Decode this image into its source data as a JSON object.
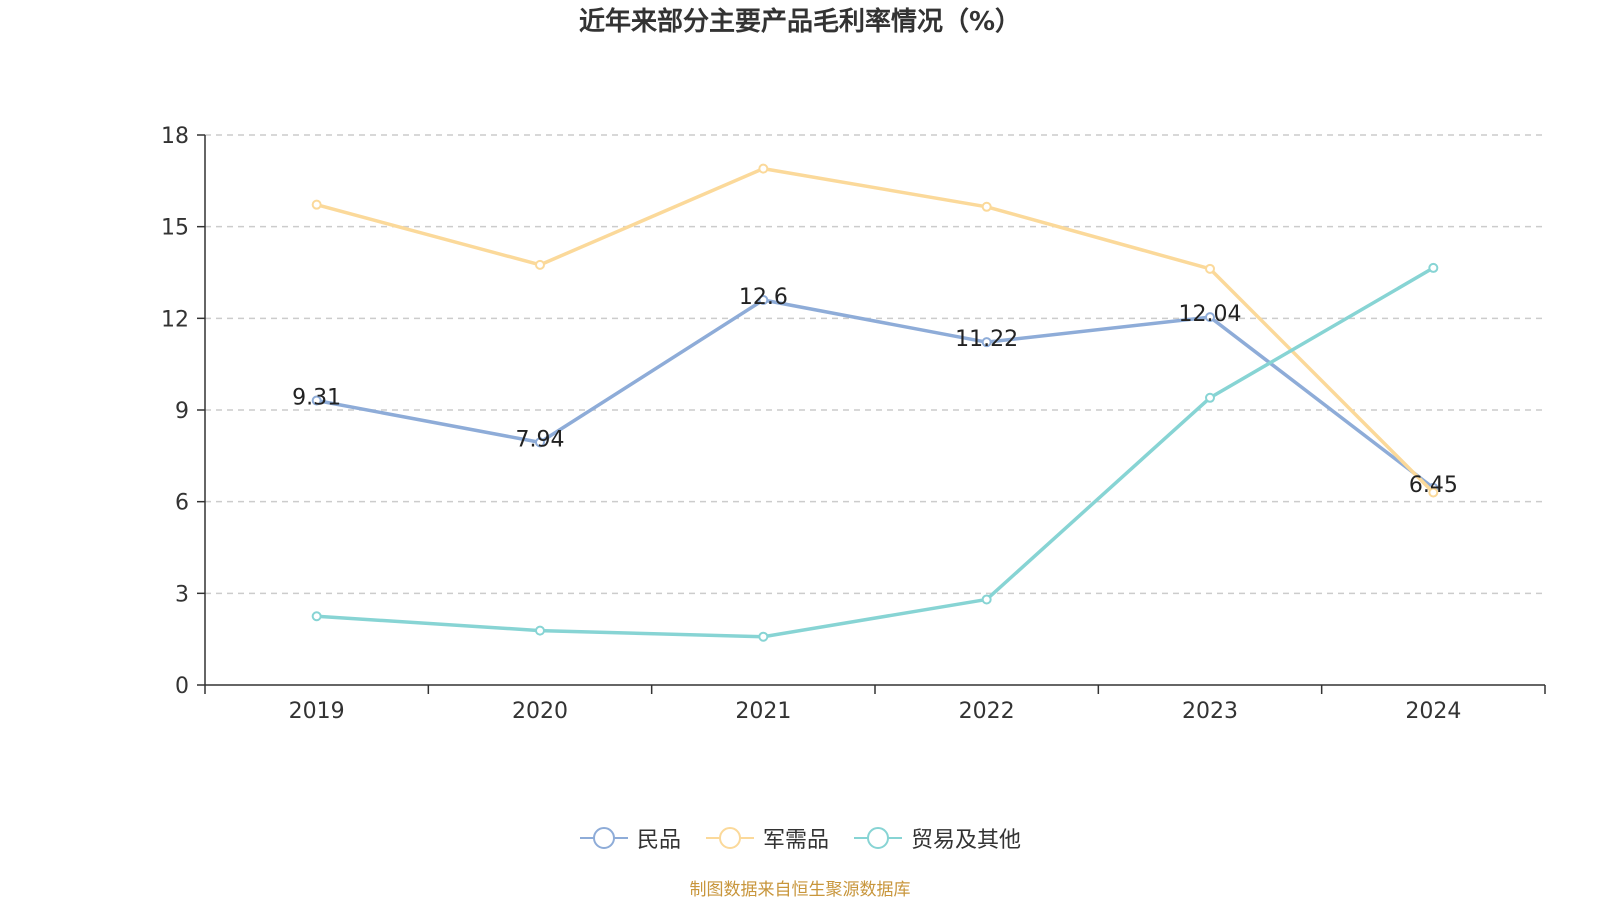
{
  "chart_data": {
    "type": "line",
    "title": "近年来部分主要产品毛利率情况（%）",
    "categories": [
      "2019",
      "2020",
      "2021",
      "2022",
      "2023",
      "2024"
    ],
    "ylim": [
      0,
      18
    ],
    "yticks": [
      0,
      3,
      6,
      9,
      12,
      15,
      18
    ],
    "grid": true,
    "legend_position": "bottom-center",
    "xlabel": "",
    "ylabel": "",
    "series": [
      {
        "name": "民品",
        "color": "#8eacd8",
        "values": [
          9.31,
          7.94,
          12.6,
          11.22,
          12.04,
          6.45
        ],
        "labels": [
          "9.31",
          "7.94",
          "12.6",
          "11.22",
          "12.04",
          "6.45"
        ]
      },
      {
        "name": "军需品",
        "color": "#fbd99a",
        "values": [
          15.72,
          13.75,
          16.9,
          15.65,
          13.62,
          6.3
        ],
        "labels": null
      },
      {
        "name": "贸易及其他",
        "color": "#87d4d4",
        "values": [
          2.25,
          1.78,
          1.58,
          2.8,
          9.4,
          13.65
        ],
        "labels": null
      }
    ]
  },
  "source": {
    "text": "制图数据来自恒生聚源数据库",
    "color": "#c8963c"
  }
}
